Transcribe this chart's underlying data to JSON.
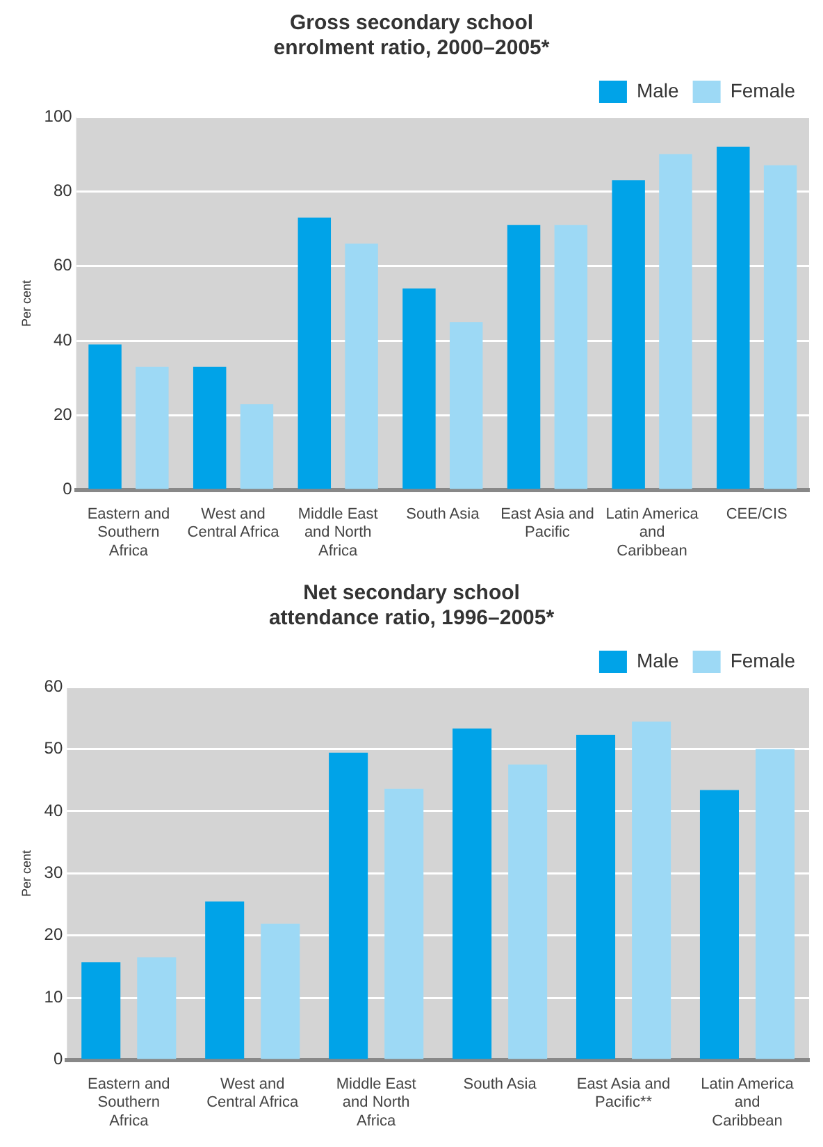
{
  "chart_data": [
    {
      "type": "bar",
      "title": "Gross secondary school enrolment ratio, 2000–2005*",
      "ylabel": "Per cent",
      "categories": [
        "Eastern and Southern Africa",
        "West and Central Africa",
        "Middle East and North Africa",
        "South Asia",
        "East Asia and Pacific",
        "Latin America and Caribbean",
        "CEE/CIS"
      ],
      "series": [
        {
          "name": "Male",
          "color": "#00a3e8",
          "values": [
            39,
            33,
            73,
            54,
            71,
            83,
            92
          ]
        },
        {
          "name": "Female",
          "color": "#9dd9f5",
          "values": [
            33,
            23,
            66,
            45,
            71,
            90,
            87
          ]
        }
      ],
      "ylim": [
        0,
        100
      ],
      "yticks": [
        0,
        20,
        40,
        60,
        80,
        100
      ],
      "grid": "y",
      "legend": "top right"
    },
    {
      "type": "bar",
      "title": "Net secondary school attendance ratio, 1996–2005*",
      "ylabel": "Per cent",
      "categories": [
        "Eastern and Southern Africa",
        "West and Central Africa",
        "Middle East and North Africa",
        "South Asia",
        "East Asia and Pacific**",
        "Latin America and Caribbean"
      ],
      "series": [
        {
          "name": "Male",
          "color": "#00a3e8",
          "values": [
            15.7,
            25.5,
            49.4,
            53.3,
            52.3,
            43.4
          ]
        },
        {
          "name": "Female",
          "color": "#9dd9f5",
          "values": [
            16.5,
            21.9,
            43.6,
            47.5,
            54.4,
            50
          ]
        }
      ],
      "ylim": [
        0,
        60
      ],
      "yticks": [
        0,
        10,
        20,
        30,
        40,
        50,
        60
      ],
      "grid": "y",
      "legend": "top right"
    }
  ]
}
